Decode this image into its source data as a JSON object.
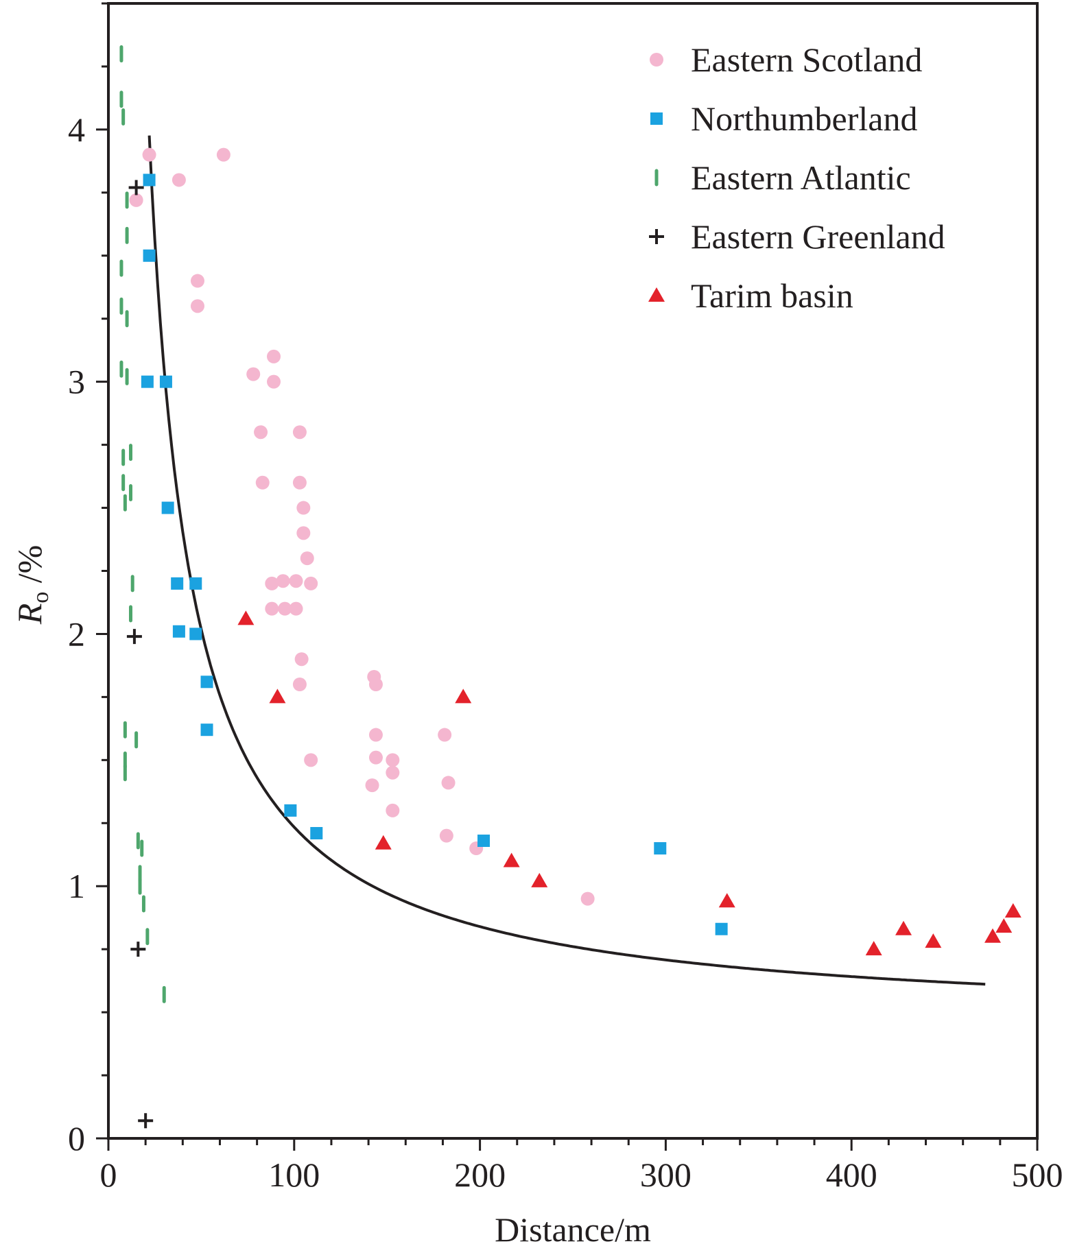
{
  "chart_data": {
    "type": "scatter",
    "title": "",
    "xlabel": "Distance/m",
    "ylabel_main": "R",
    "ylabel_sub": "o",
    "ylabel_rest": " /%",
    "xlim": [
      0,
      500
    ],
    "ylim": [
      0,
      4.5
    ],
    "x_ticks": [
      0,
      100,
      200,
      300,
      400,
      500
    ],
    "x_tick_labels": [
      "0",
      "100",
      "200",
      "300",
      "400",
      "500"
    ],
    "x_minor_step": 20,
    "y_ticks": [
      0,
      1,
      2,
      3,
      4
    ],
    "y_tick_labels": [
      "0",
      "1",
      "2",
      "3",
      "4"
    ],
    "y_minor_step": 0.25,
    "grid": false,
    "legend_position": "top-right",
    "series": [
      {
        "name": "Eastern Scotland",
        "marker": "circle",
        "color": "#f4b6cf",
        "points": [
          [
            15,
            3.72
          ],
          [
            22,
            3.9
          ],
          [
            38,
            3.8
          ],
          [
            62,
            3.9
          ],
          [
            48,
            3.4
          ],
          [
            48,
            3.3
          ],
          [
            89,
            3.1
          ],
          [
            78,
            3.03
          ],
          [
            89,
            3.0
          ],
          [
            82,
            2.8
          ],
          [
            103,
            2.8
          ],
          [
            83,
            2.6
          ],
          [
            103,
            2.6
          ],
          [
            105,
            2.5
          ],
          [
            105,
            2.4
          ],
          [
            107,
            2.3
          ],
          [
            88,
            2.2
          ],
          [
            94,
            2.21
          ],
          [
            101,
            2.21
          ],
          [
            109,
            2.2
          ],
          [
            88,
            2.1
          ],
          [
            95,
            2.1
          ],
          [
            101,
            2.1
          ],
          [
            104,
            1.9
          ],
          [
            103,
            1.8
          ],
          [
            109,
            1.5
          ],
          [
            143,
            1.83
          ],
          [
            144,
            1.8
          ],
          [
            144,
            1.6
          ],
          [
            144,
            1.51
          ],
          [
            153,
            1.5
          ],
          [
            153,
            1.45
          ],
          [
            142,
            1.4
          ],
          [
            153,
            1.3
          ],
          [
            181,
            1.6
          ],
          [
            183,
            1.41
          ],
          [
            182,
            1.2
          ],
          [
            198,
            1.15
          ],
          [
            258,
            0.95
          ]
        ]
      },
      {
        "name": "Northumberland",
        "marker": "square",
        "color": "#1ba2e0",
        "points": [
          [
            22,
            3.8
          ],
          [
            22,
            3.5
          ],
          [
            21,
            3.0
          ],
          [
            31,
            3.0
          ],
          [
            32,
            2.5
          ],
          [
            37,
            2.2
          ],
          [
            47,
            2.2
          ],
          [
            38,
            2.01
          ],
          [
            47,
            2.0
          ],
          [
            53,
            1.81
          ],
          [
            53,
            1.62
          ],
          [
            98,
            1.3
          ],
          [
            112,
            1.21
          ],
          [
            202,
            1.18
          ],
          [
            297,
            1.15
          ],
          [
            330,
            0.83
          ]
        ]
      },
      {
        "name": "Eastern Atlantic",
        "marker": "dash",
        "color": "#4ea66c",
        "points": [
          [
            7,
            4.3
          ],
          [
            7,
            4.12
          ],
          [
            8,
            4.05
          ],
          [
            10,
            3.72
          ],
          [
            10,
            3.58
          ],
          [
            7,
            3.45
          ],
          [
            7,
            3.3
          ],
          [
            10,
            3.25
          ],
          [
            7,
            3.05
          ],
          [
            10,
            3.02
          ],
          [
            12,
            2.72
          ],
          [
            8,
            2.7
          ],
          [
            8,
            2.6
          ],
          [
            12,
            2.56
          ],
          [
            9,
            2.52
          ],
          [
            13,
            2.2
          ],
          [
            12,
            2.08
          ],
          [
            9,
            1.62
          ],
          [
            15,
            1.58
          ],
          [
            9,
            1.5
          ],
          [
            9,
            1.45
          ],
          [
            16,
            1.18
          ],
          [
            18,
            1.15
          ],
          [
            17,
            1.05
          ],
          [
            17,
            1.0
          ],
          [
            19,
            0.93
          ],
          [
            21,
            0.8
          ],
          [
            30,
            0.57
          ]
        ]
      },
      {
        "name": "Eastern Greenland",
        "marker": "plus",
        "color": "#231f20",
        "points": [
          [
            15,
            3.77
          ],
          [
            14,
            1.99
          ],
          [
            16,
            0.75
          ],
          [
            20,
            0.07
          ]
        ]
      },
      {
        "name": "Tarim basin",
        "marker": "triangle",
        "color": "#e3222b",
        "points": [
          [
            74,
            2.06
          ],
          [
            91,
            1.75
          ],
          [
            148,
            1.17
          ],
          [
            191,
            1.75
          ],
          [
            217,
            1.1
          ],
          [
            232,
            1.02
          ],
          [
            333,
            0.94
          ],
          [
            412,
            0.75
          ],
          [
            428,
            0.83
          ],
          [
            444,
            0.78
          ],
          [
            476,
            0.8
          ],
          [
            482,
            0.84
          ],
          [
            487,
            0.9
          ]
        ]
      }
    ],
    "fit_curve": {
      "color": "#231f20",
      "x_start": 22,
      "x_end": 472,
      "formula": "y = 0.443 + 79.5 / (x + 0.5)"
    }
  }
}
